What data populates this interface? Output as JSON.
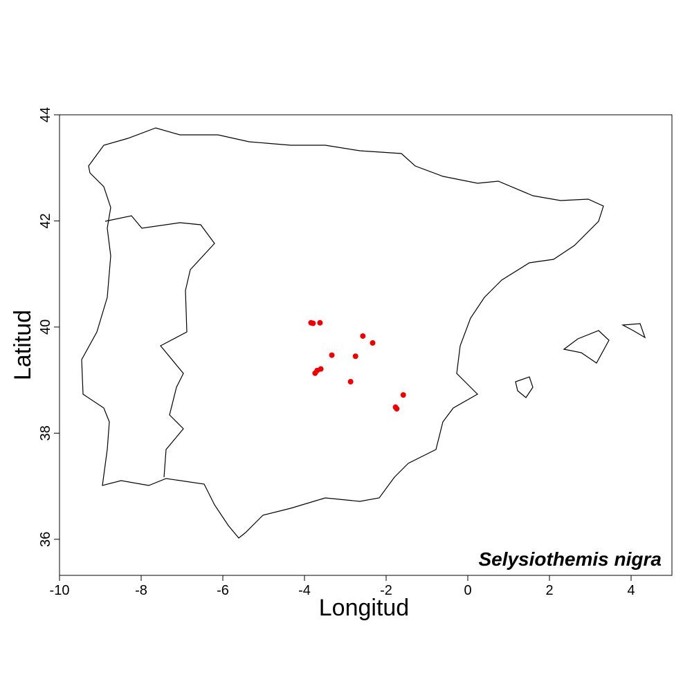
{
  "chart_data": {
    "type": "scatter",
    "title": "Selysiothemis nigra",
    "x_label": "Longitud",
    "y_label": "Latitud",
    "color": "#ee0000",
    "x": [
      -3.84,
      -3.79,
      -3.62,
      -3.33,
      -2.57,
      -2.33,
      -2.75,
      -3.6,
      -3.69,
      -3.74,
      -2.87,
      -1.58,
      -1.77,
      -1.74
    ],
    "values": [
      40.08,
      40.07,
      40.08,
      39.47,
      39.83,
      39.7,
      39.45,
      39.21,
      39.18,
      39.13,
      38.97,
      38.72,
      38.49,
      38.46
    ],
    "xlim": [
      -10,
      5
    ],
    "ylim": [
      35.32,
      44
    ],
    "xticks": [
      -10,
      -8,
      -6,
      -4,
      -2,
      0,
      2,
      4
    ],
    "yticks": [
      36,
      38,
      40,
      42,
      44
    ]
  }
}
